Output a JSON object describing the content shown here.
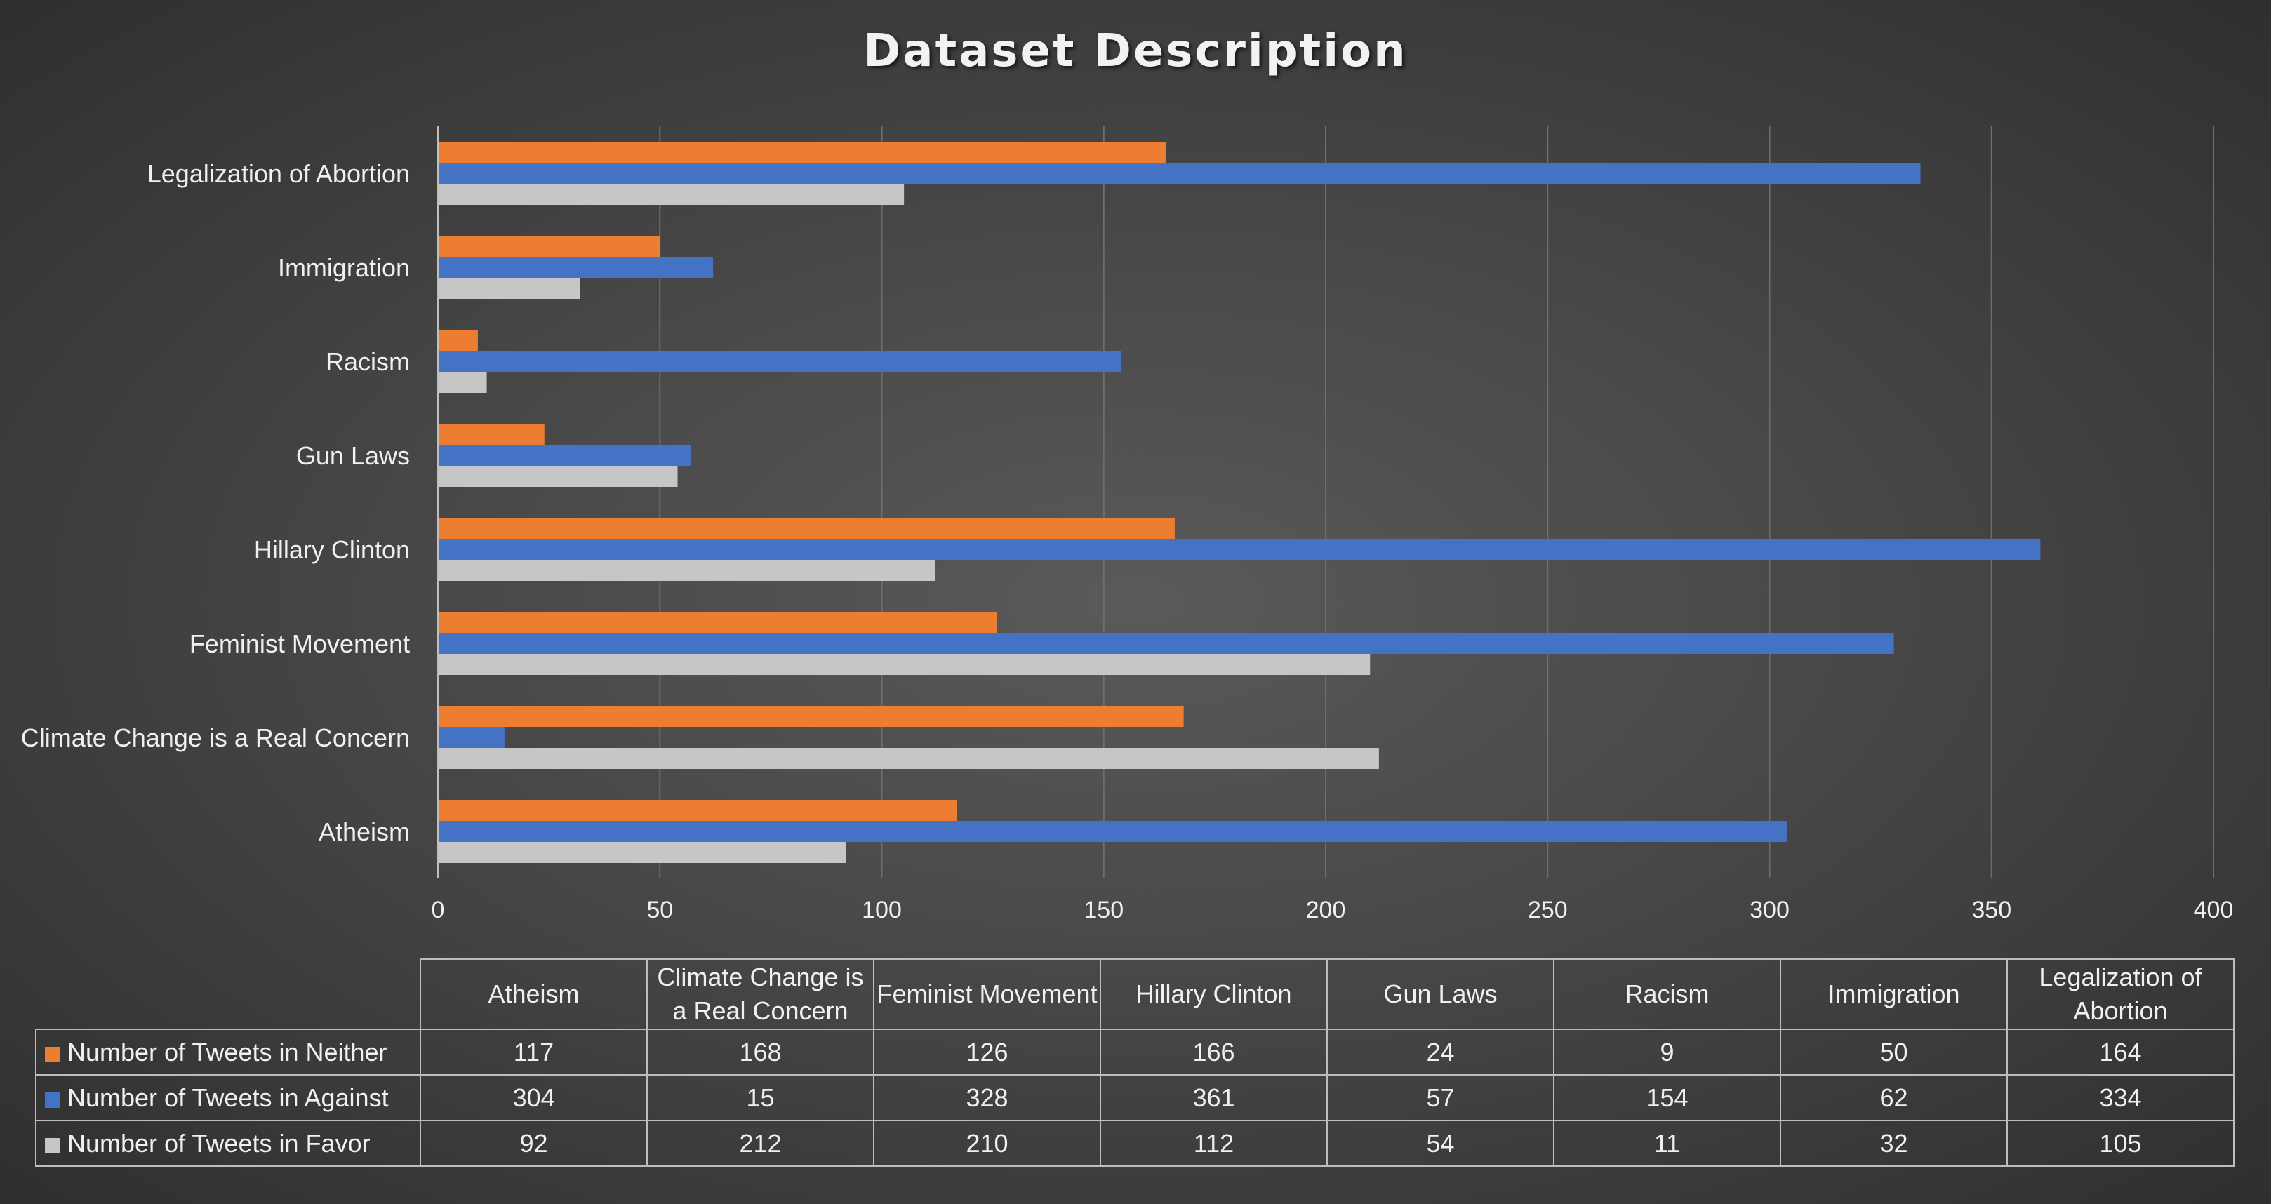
{
  "chart_data": {
    "type": "bar",
    "orientation": "horizontal",
    "title": "Dataset Description",
    "categories": [
      "Atheism",
      "Climate Change is a Real Concern",
      "Feminist Movement",
      "Hillary Clinton",
      "Gun Laws",
      "Racism",
      "Immigration",
      "Legalization of Abortion"
    ],
    "series": [
      {
        "name": "Number of Tweets in Neither",
        "color": "#ed7d31",
        "values": [
          117,
          168,
          126,
          166,
          24,
          9,
          50,
          164
        ]
      },
      {
        "name": "Number of Tweets in Against",
        "color": "#4472c4",
        "values": [
          304,
          15,
          328,
          361,
          57,
          154,
          62,
          334
        ]
      },
      {
        "name": "Number of Tweets in Favor",
        "color": "#c6c6c6",
        "values": [
          92,
          212,
          210,
          112,
          54,
          11,
          32,
          105
        ]
      }
    ],
    "xlim": [
      0,
      400
    ],
    "x_ticks": [
      "0",
      "50",
      "100",
      "150",
      "200",
      "250",
      "300",
      "350",
      "400"
    ],
    "grid": true,
    "legend": "data table below chart"
  }
}
